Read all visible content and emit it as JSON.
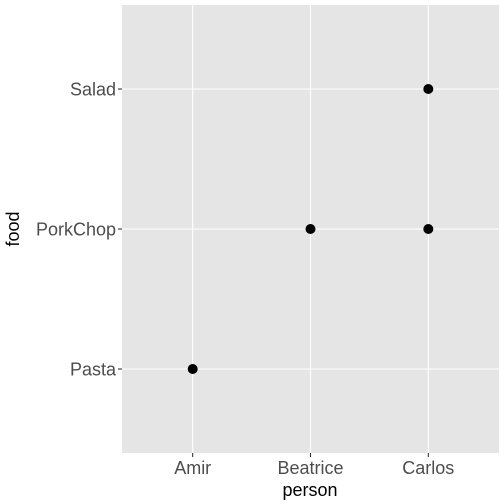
{
  "chart_data": {
    "type": "scatter",
    "xlabel": "person",
    "ylabel": "food",
    "x_categories": [
      "Amir",
      "Beatrice",
      "Carlos"
    ],
    "y_categories": [
      "Pasta",
      "PorkChop",
      "Salad"
    ],
    "points": [
      {
        "x": "Amir",
        "y": "Pasta"
      },
      {
        "x": "Beatrice",
        "y": "PorkChop"
      },
      {
        "x": "Carlos",
        "y": "PorkChop"
      },
      {
        "x": "Carlos",
        "y": "Salad"
      }
    ],
    "grid": true,
    "colors": {
      "panel_background": "#e5e5e5",
      "grid_line": "#ffffff",
      "point": "#000000",
      "tick_label": "#4d4d4d"
    }
  }
}
